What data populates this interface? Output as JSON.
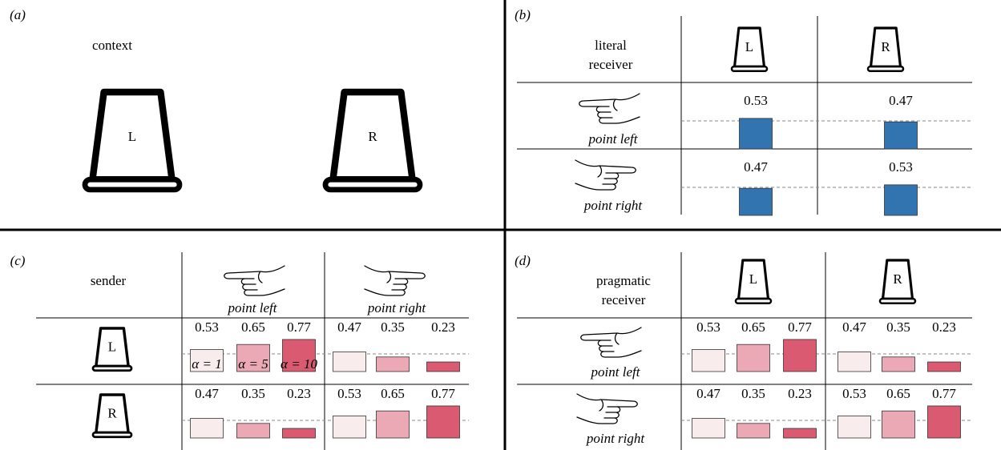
{
  "panels": [
    {
      "label": "(a)",
      "title": "context",
      "cups": [
        "L",
        "R"
      ]
    },
    {
      "label": "(b)",
      "title_lines": [
        "literal",
        "receiver"
      ],
      "columns": [
        "L",
        "R"
      ],
      "bar_color": "#3274b0",
      "rows": [
        {
          "label": "point left",
          "values": [
            0.53,
            0.47
          ]
        },
        {
          "label": "point right",
          "values": [
            0.47,
            0.53
          ]
        }
      ]
    },
    {
      "label": "(c)",
      "title_lines": [
        "sender"
      ],
      "columns": [
        "point left",
        "point right"
      ],
      "alpha_labels": [
        "α = 1",
        "α = 5",
        "α = 10"
      ],
      "colors": [
        "#f9eced",
        "#eba9b6",
        "#da5a72"
      ],
      "rows": [
        {
          "label": "L",
          "values": [
            [
              0.53,
              0.65,
              0.77
            ],
            [
              0.47,
              0.35,
              0.23
            ]
          ]
        },
        {
          "label": "R",
          "values": [
            [
              0.47,
              0.35,
              0.23
            ],
            [
              0.53,
              0.65,
              0.77
            ]
          ]
        }
      ]
    },
    {
      "label": "(d)",
      "title_lines": [
        "pragmatic",
        "receiver"
      ],
      "columns": [
        "L",
        "R"
      ],
      "colors": [
        "#f9eced",
        "#eba9b6",
        "#da5a72"
      ],
      "rows": [
        {
          "label": "point left",
          "values": [
            [
              0.53,
              0.65,
              0.77
            ],
            [
              0.47,
              0.35,
              0.23
            ]
          ]
        },
        {
          "label": "point right",
          "values": [
            [
              0.47,
              0.35,
              0.23
            ],
            [
              0.53,
              0.65,
              0.77
            ]
          ]
        }
      ]
    }
  ]
}
